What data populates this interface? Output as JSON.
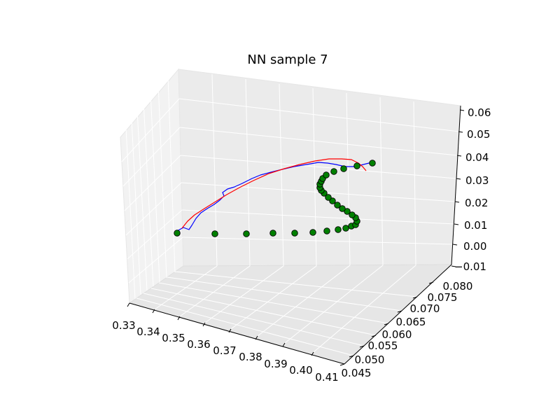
{
  "chart_data": {
    "type": "line3d",
    "title": "NN sample 7",
    "xlabel": "",
    "ylabel": "",
    "zlabel": "",
    "grid": true,
    "legend": "none",
    "xlim": [
      0.33,
      0.41
    ],
    "ylim": [
      0.045,
      0.08
    ],
    "zlim": [
      -0.01,
      0.06
    ],
    "x_ticks": [
      "0.33",
      "0.34",
      "0.35",
      "0.36",
      "0.37",
      "0.38",
      "0.39",
      "0.40",
      "0.41"
    ],
    "y_ticks": [
      "0.045",
      "0.050",
      "0.055",
      "0.060",
      "0.065",
      "0.070",
      "0.075",
      "0.080"
    ],
    "z_ticks": [
      "−0.01",
      "0.00",
      "0.01",
      "0.02",
      "0.03",
      "0.04",
      "0.05",
      "0.06"
    ],
    "colors": {
      "blue_series": "#0000ff",
      "red_series": "#ff0000",
      "markers": "#008000"
    },
    "series": [
      {
        "style": "line",
        "color": "#0000ff",
        "points": [
          [
            253,
            330
          ],
          [
            262,
            325
          ],
          [
            270,
            328
          ],
          [
            274,
            322
          ],
          [
            280,
            312
          ],
          [
            287,
            304
          ],
          [
            296,
            298
          ],
          [
            306,
            292
          ],
          [
            314,
            286
          ],
          [
            320,
            280
          ],
          [
            318,
            275
          ],
          [
            325,
            270
          ],
          [
            335,
            267
          ],
          [
            346,
            262
          ],
          [
            360,
            255
          ],
          [
            372,
            250
          ],
          [
            387,
            246
          ],
          [
            403,
            242
          ],
          [
            420,
            238
          ],
          [
            438,
            235
          ],
          [
            455,
            232
          ],
          [
            468,
            233
          ],
          [
            480,
            235
          ],
          [
            493,
            238
          ],
          [
            505,
            238
          ],
          [
            515,
            236
          ],
          [
            527,
            233
          ],
          [
            533,
            232
          ]
        ]
      },
      {
        "style": "line",
        "color": "#ff0000",
        "points": [
          [
            260,
            326
          ],
          [
            268,
            316
          ],
          [
            278,
            307
          ],
          [
            292,
            298
          ],
          [
            308,
            288
          ],
          [
            324,
            278
          ],
          [
            342,
            268
          ],
          [
            362,
            258
          ],
          [
            384,
            248
          ],
          [
            406,
            241
          ],
          [
            428,
            235
          ],
          [
            450,
            230
          ],
          [
            470,
            227
          ],
          [
            488,
            227
          ],
          [
            502,
            228
          ],
          [
            512,
            233
          ],
          [
            518,
            238
          ],
          [
            523,
            244
          ]
        ]
      },
      {
        "style": "markers",
        "color": "#008000",
        "points": [
          [
            253,
            333
          ],
          [
            307,
            334
          ],
          [
            352,
            334
          ],
          [
            390,
            333
          ],
          [
            421,
            333
          ],
          [
            447,
            332
          ],
          [
            467,
            330
          ],
          [
            483,
            328
          ],
          [
            494,
            326
          ],
          [
            502,
            323
          ],
          [
            508,
            321
          ],
          [
            510,
            316
          ],
          [
            508,
            311
          ],
          [
            503,
            307
          ],
          [
            496,
            302
          ],
          [
            489,
            298
          ],
          [
            482,
            293
          ],
          [
            475,
            287
          ],
          [
            469,
            282
          ],
          [
            463,
            276
          ],
          [
            459,
            272
          ],
          [
            457,
            268
          ],
          [
            457,
            263
          ],
          [
            459,
            259
          ],
          [
            461,
            255
          ],
          [
            466,
            250
          ],
          [
            477,
            245
          ],
          [
            491,
            241
          ],
          [
            510,
            237
          ],
          [
            532,
            233
          ]
        ]
      }
    ]
  }
}
